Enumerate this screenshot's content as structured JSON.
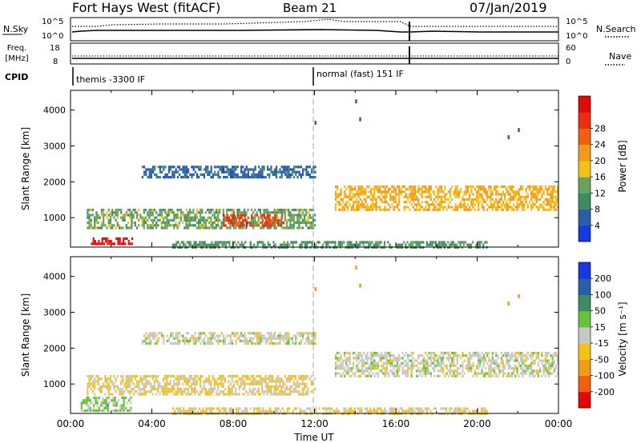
{
  "header": {
    "title": "Fort Hays West (fitACF)",
    "beam": "Beam 21",
    "date": "07/Jan/2019"
  },
  "summary": {
    "nsky_label": "N.Sky",
    "nsky_ticks": [
      "10^5",
      "10^0"
    ],
    "nsearch_ticks": [
      "10^5",
      "10^0"
    ],
    "nsearch_label": "N.Search",
    "freq_label_1": "Freq.",
    "freq_label_2": "[MHz]",
    "freq_ticks": [
      "18",
      "8"
    ],
    "nave_ticks": [
      "60",
      "0"
    ],
    "nave_label": "Nave",
    "cpid_label": "CPID",
    "cpid_segments": [
      {
        "label": "themis -3300 IF",
        "start_hour": 0
      },
      {
        "label": "normal (fast) 151 IF",
        "start_hour": 12
      }
    ]
  },
  "chart_data": [
    {
      "type": "heatmap",
      "title": "Power",
      "xlabel": "",
      "ylabel": "Slant Range [km]",
      "xlim": [
        0,
        24
      ],
      "ylim": [
        180,
        4550
      ],
      "yticks": [
        1000,
        2000,
        3000,
        4000
      ],
      "colorbar": {
        "label": "Power [dB]",
        "range": [
          0,
          32
        ],
        "ticks": [
          "4",
          "8",
          "12",
          "16",
          "20",
          "24",
          "28"
        ],
        "colors": [
          "#1838e0",
          "#2a5ea8",
          "#3f8c64",
          "#67a35c",
          "#f2c21a",
          "#f29a1a",
          "#f06010",
          "#e83010",
          "#e00a0a"
        ]
      },
      "regions": [
        {
          "feature": "low-range band",
          "x_start": 1.0,
          "x_end": 3.0,
          "range_start": 250,
          "range_end": 450,
          "value": 30
        },
        {
          "feature": "main echo band",
          "x_start": 0.8,
          "x_end": 12.0,
          "range_start": 700,
          "range_end": 1250,
          "value": 12
        },
        {
          "feature": "main echo peak",
          "x_start": 7.5,
          "x_end": 10.5,
          "range_start": 800,
          "range_end": 1100,
          "value": 26
        },
        {
          "feature": "upper band",
          "x_start": 3.5,
          "x_end": 12.0,
          "range_start": 2100,
          "range_end": 2450,
          "value": 6
        },
        {
          "feature": "afternoon band",
          "x_start": 13.0,
          "x_end": 24.0,
          "range_start": 1200,
          "range_end": 1900,
          "value": 18
        },
        {
          "feature": "near-range clutter",
          "x_start": 5.0,
          "x_end": 20.5,
          "range_start": 200,
          "range_end": 350,
          "value": 10
        }
      ]
    },
    {
      "type": "heatmap",
      "title": "Velocity",
      "xlabel": "Time UT",
      "ylabel": "Slant Range [km]",
      "xlim": [
        0,
        24
      ],
      "ylim": [
        180,
        4550
      ],
      "yticks": [
        1000,
        2000,
        3000,
        4000
      ],
      "xticks": [
        "00:00",
        "04:00",
        "08:00",
        "12:00",
        "16:00",
        "20:00",
        "00:00"
      ],
      "colorbar": {
        "label": "Velocity [m s⁻¹]",
        "range": [
          -250,
          250
        ],
        "ticks": [
          "200",
          "100",
          "50",
          "15",
          "-15",
          "-50",
          "-100",
          "-200"
        ],
        "colors": [
          "#e00a0a",
          "#f06010",
          "#f29a1a",
          "#f2c21a",
          "#c8c8c8",
          "#66c23a",
          "#3f8c64",
          "#2a5ea8",
          "#1838e0"
        ]
      },
      "regions": [
        {
          "feature": "low-range band",
          "x_start": 0.5,
          "x_end": 3.0,
          "range_start": 250,
          "range_end": 650,
          "value": 40
        },
        {
          "feature": "main echo band",
          "x_start": 0.8,
          "x_end": 12.0,
          "range_start": 700,
          "range_end": 1250,
          "value": -30
        },
        {
          "feature": "upper band",
          "x_start": 3.5,
          "x_end": 12.0,
          "range_start": 2100,
          "range_end": 2450,
          "value": 0
        },
        {
          "feature": "afternoon band",
          "x_start": 13.0,
          "x_end": 24.0,
          "range_start": 1200,
          "range_end": 1900,
          "value": 0
        },
        {
          "feature": "near-range clutter",
          "x_start": 5.0,
          "x_end": 20.5,
          "range_start": 200,
          "range_end": 350,
          "value": -30
        }
      ]
    }
  ]
}
